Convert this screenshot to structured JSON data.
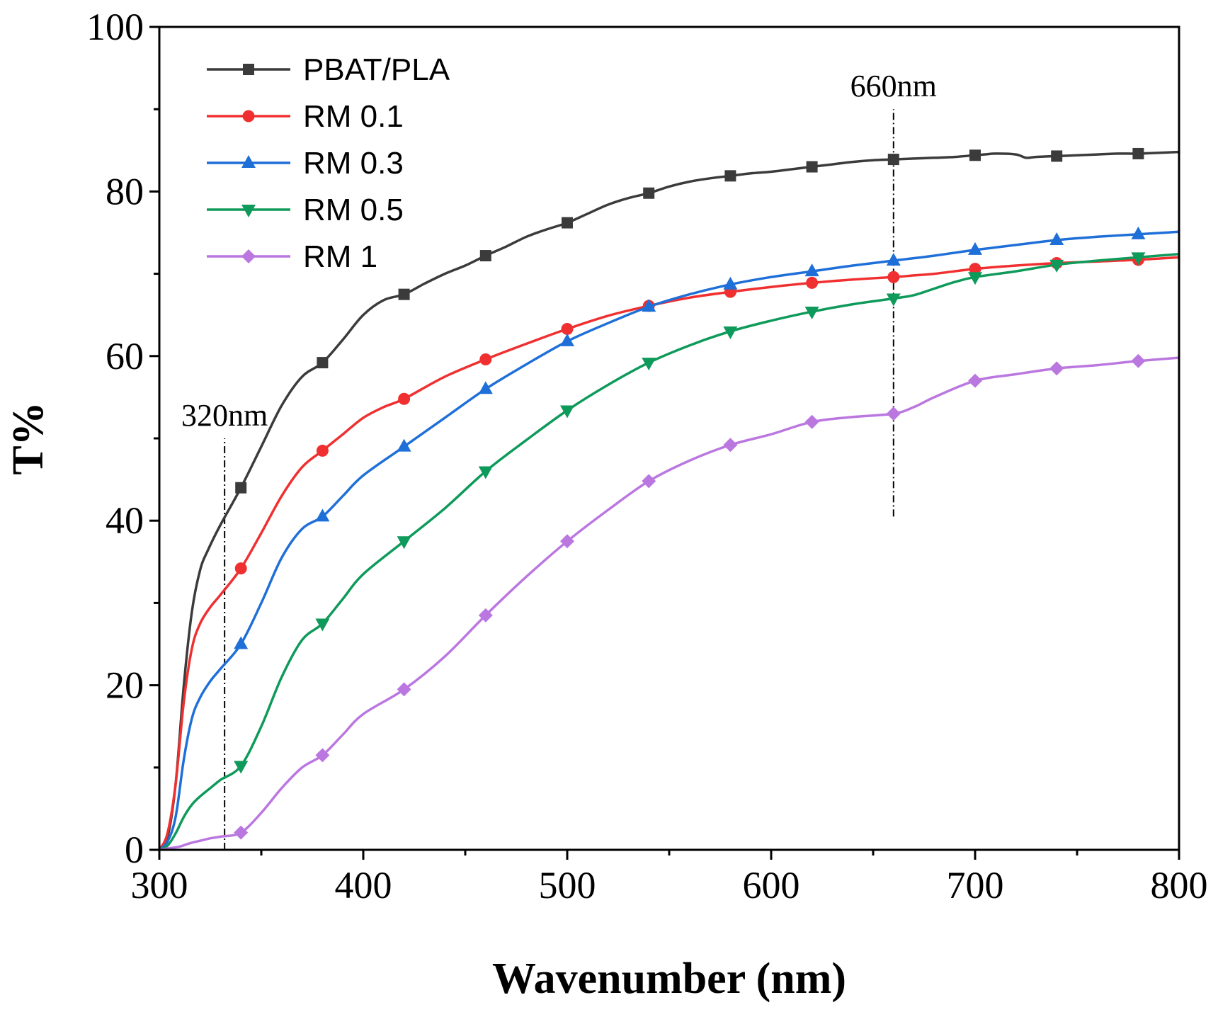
{
  "chart_data": {
    "type": "line",
    "title": "",
    "xlabel": "Wavenumber (nm)",
    "ylabel": "T%",
    "xlim": [
      300,
      800
    ],
    "ylim": [
      0,
      100
    ],
    "xticks": [
      300,
      400,
      500,
      600,
      700,
      800
    ],
    "yticks": [
      0,
      20,
      40,
      60,
      80,
      100
    ],
    "grid": false,
    "legend_position": "top-left",
    "series": [
      {
        "name": "PBAT/PLA",
        "color": "#3b3b3b",
        "marker": "square",
        "x": [
          300,
          304,
          308,
          312,
          316,
          320,
          324,
          330,
          340,
          350,
          360,
          370,
          380,
          390,
          400,
          410,
          420,
          430,
          440,
          450,
          460,
          470,
          480,
          490,
          500,
          510,
          520,
          530,
          540,
          550,
          560,
          570,
          580,
          590,
          600,
          610,
          620,
          630,
          640,
          650,
          660,
          670,
          680,
          690,
          700,
          710,
          720,
          725,
          730,
          740,
          750,
          760,
          770,
          780,
          790,
          800
        ],
        "y": [
          0,
          1.5,
          8,
          20,
          29,
          34,
          36.5,
          39.5,
          44,
          49,
          54,
          57.5,
          59.2,
          62,
          65,
          66.8,
          67.5,
          68.8,
          70,
          71,
          72.2,
          73.3,
          74.5,
          75.4,
          76.2,
          77.3,
          78.4,
          79.2,
          79.8,
          80.6,
          81.2,
          81.6,
          81.9,
          82.2,
          82.4,
          82.7,
          83,
          83.3,
          83.6,
          83.8,
          83.9,
          84,
          84.1,
          84.2,
          84.4,
          84.6,
          84.5,
          84.1,
          84.2,
          84.3,
          84.4,
          84.5,
          84.6,
          84.6,
          84.7,
          84.8
        ],
        "marker_x": [
          340,
          380,
          420,
          460,
          500,
          540,
          580,
          620,
          660,
          700,
          740,
          780
        ]
      },
      {
        "name": "RM 0.1",
        "color": "#f03030",
        "marker": "circle",
        "x": [
          300,
          304,
          308,
          312,
          316,
          320,
          325,
          330,
          340,
          350,
          360,
          370,
          380,
          390,
          400,
          410,
          420,
          440,
          460,
          480,
          500,
          520,
          540,
          560,
          580,
          600,
          620,
          640,
          660,
          670,
          680,
          700,
          720,
          740,
          760,
          780,
          800
        ],
        "y": [
          0,
          2,
          8,
          18,
          24.5,
          27.5,
          29.5,
          31,
          34.2,
          38.5,
          43,
          46.5,
          48.5,
          50.5,
          52.5,
          53.8,
          54.8,
          57.5,
          59.6,
          61.5,
          63.3,
          64.9,
          66.1,
          67.1,
          67.8,
          68.4,
          68.9,
          69.3,
          69.6,
          69.8,
          70,
          70.6,
          71,
          71.3,
          71.5,
          71.7,
          72
        ]
      },
      {
        "name": "RM 0.3",
        "color": "#1f6fd8",
        "marker": "triangle-up",
        "x": [
          300,
          304,
          308,
          312,
          316,
          320,
          325,
          330,
          340,
          350,
          360,
          370,
          380,
          390,
          400,
          420,
          440,
          460,
          480,
          500,
          520,
          540,
          560,
          580,
          600,
          620,
          640,
          660,
          680,
          700,
          720,
          740,
          760,
          780,
          800
        ],
        "y": [
          0,
          1,
          4,
          11,
          16,
          18.5,
          20.5,
          22,
          25,
          30,
          35.5,
          39,
          40.5,
          43,
          45.5,
          49,
          52.5,
          56,
          59,
          61.8,
          64,
          66,
          67.5,
          68.7,
          69.6,
          70.3,
          71,
          71.6,
          72.2,
          72.9,
          73.5,
          74.1,
          74.5,
          74.8,
          75.1
        ]
      },
      {
        "name": "RM 0.5",
        "color": "#0e9a5a",
        "marker": "triangle-down",
        "x": [
          300,
          304,
          308,
          312,
          316,
          320,
          325,
          330,
          340,
          350,
          360,
          370,
          380,
          390,
          400,
          420,
          440,
          460,
          480,
          500,
          520,
          540,
          560,
          580,
          600,
          620,
          640,
          660,
          670,
          680,
          690,
          700,
          720,
          740,
          760,
          780,
          800
        ],
        "y": [
          0,
          0.5,
          2,
          4,
          5.5,
          6.5,
          7.5,
          8.5,
          10.2,
          15,
          21,
          25.5,
          27.5,
          30.5,
          33.5,
          37.5,
          41.5,
          46,
          49.8,
          53.4,
          56.5,
          59.2,
          61.3,
          63,
          64.3,
          65.4,
          66.3,
          67,
          67.4,
          68.2,
          69,
          69.6,
          70.3,
          71.1,
          71.6,
          72,
          72.4
        ]
      },
      {
        "name": "RM 1",
        "color": "#bb77e0",
        "marker": "diamond",
        "x": [
          300,
          305,
          310,
          315,
          320,
          325,
          330,
          340,
          350,
          360,
          370,
          380,
          390,
          400,
          420,
          440,
          460,
          480,
          500,
          520,
          540,
          560,
          580,
          600,
          620,
          640,
          660,
          670,
          680,
          700,
          720,
          740,
          760,
          780,
          800
        ],
        "y": [
          0,
          0.2,
          0.4,
          0.8,
          1.1,
          1.4,
          1.6,
          2.1,
          4.5,
          7.5,
          10,
          11.5,
          14,
          16.5,
          19.5,
          23.5,
          28.5,
          33.2,
          37.5,
          41.3,
          44.8,
          47.3,
          49.2,
          50.5,
          52,
          52.6,
          53,
          53.8,
          55,
          57,
          57.8,
          58.5,
          58.9,
          59.4,
          59.8
        ]
      }
    ],
    "annotations": [
      {
        "label": "320nm",
        "x": 332,
        "y_range": [
          0,
          50
        ]
      },
      {
        "label": "660nm",
        "x": 660,
        "y_range": [
          40.5,
          90
        ]
      }
    ]
  }
}
